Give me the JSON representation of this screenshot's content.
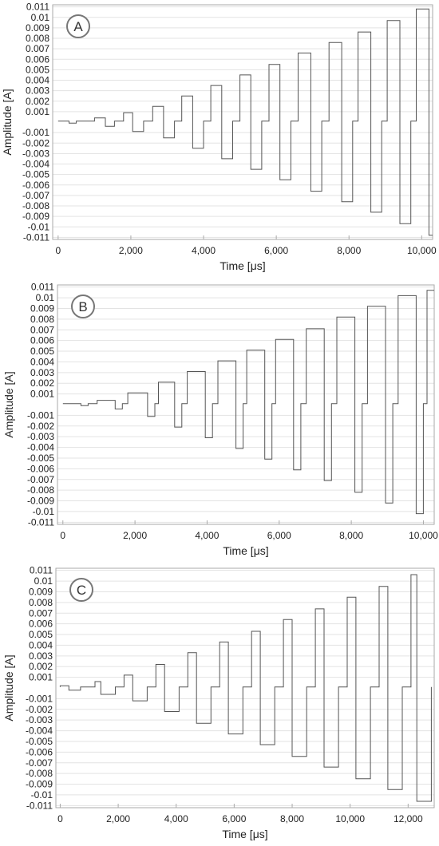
{
  "chart_data": [
    {
      "type": "line",
      "badge": "A",
      "xlabel": "Time [μs]",
      "ylabel": "Amplitude [A]",
      "xlim": [
        -150,
        10300
      ],
      "ylim": [
        -0.0112,
        0.0112
      ],
      "grid": true,
      "x_ticks": [
        0,
        2000,
        4000,
        6000,
        8000,
        10000
      ],
      "x_tick_labels": [
        "0",
        "2,000",
        "4,000",
        "6,000",
        "8,000",
        "10,000"
      ],
      "y_tick_labels": [
        "0.011",
        "0.01",
        "0.009",
        "0.008",
        "0.007",
        "0.006",
        "0.005",
        "0.004",
        "0.003",
        "0.002",
        "0.001",
        "-0.001",
        "-0.002",
        "-0.003",
        "-0.004",
        "-0.005",
        "-0.006",
        "-0.007",
        "-0.008",
        "-0.009",
        "-0.01",
        "-0.011"
      ],
      "pulses": [
        {
          "start": 0,
          "pos_end": 300,
          "neg_end": 500,
          "rest_end": 1000
        },
        {
          "start": 1000,
          "pos_end": 1300,
          "neg_end": 1550,
          "rest_end": 1800
        },
        {
          "start": 1800,
          "pos_end": 2050,
          "neg_end": 2350,
          "rest_end": 2600
        },
        {
          "start": 2600,
          "pos_end": 2900,
          "neg_end": 3200,
          "rest_end": 3400
        },
        {
          "start": 3400,
          "pos_end": 3700,
          "neg_end": 4000,
          "rest_end": 4200
        },
        {
          "start": 4200,
          "pos_end": 4500,
          "neg_end": 4800,
          "rest_end": 5000
        },
        {
          "start": 5000,
          "pos_end": 5300,
          "neg_end": 5600,
          "rest_end": 5800
        },
        {
          "start": 5800,
          "pos_end": 6100,
          "neg_end": 6400,
          "rest_end": 6600
        },
        {
          "start": 6600,
          "pos_end": 6950,
          "neg_end": 7250,
          "rest_end": 7450
        },
        {
          "start": 7450,
          "pos_end": 7800,
          "neg_end": 8100,
          "rest_end": 8250
        },
        {
          "start": 8250,
          "pos_end": 8600,
          "neg_end": 8900,
          "rest_end": 9050
        },
        {
          "start": 9050,
          "pos_end": 9400,
          "neg_end": 9700,
          "rest_end": 9850
        },
        {
          "start": 9850,
          "pos_end": 10200,
          "neg_end": 10500,
          "rest_end": 10500
        }
      ],
      "amplitudes": [
        0.0001,
        0.0004,
        0.0009,
        0.0015,
        0.0025,
        0.0035,
        0.0045,
        0.0055,
        0.0066,
        0.0076,
        0.0086,
        0.0097,
        0.0108
      ]
    },
    {
      "type": "line",
      "badge": "B",
      "xlabel": "Time [μs]",
      "ylabel": "Amplitude [A]",
      "xlim": [
        -150,
        10300
      ],
      "ylim": [
        -0.0112,
        0.0112
      ],
      "grid": true,
      "x_ticks": [
        0,
        2000,
        4000,
        6000,
        8000,
        10000
      ],
      "x_tick_labels": [
        "0",
        "2,000",
        "4,000",
        "6,000",
        "8,000",
        "10,000"
      ],
      "y_tick_labels": [
        "0.011",
        "0.01",
        "0.009",
        "0.008",
        "0.007",
        "0.006",
        "0.005",
        "0.004",
        "0.003",
        "0.002",
        "0.001",
        "-0.001",
        "-0.002",
        "-0.003",
        "-0.004",
        "-0.005",
        "-0.006",
        "-0.007",
        "-0.008",
        "-0.009",
        "-0.01",
        "-0.011"
      ],
      "pulses": [
        {
          "start": 0,
          "pos_end": 500,
          "neg_end": 700,
          "rest_end": 950
        },
        {
          "start": 950,
          "pos_end": 1450,
          "neg_end": 1650,
          "rest_end": 1800
        },
        {
          "start": 1800,
          "pos_end": 2350,
          "neg_end": 2550,
          "rest_end": 2650
        },
        {
          "start": 2650,
          "pos_end": 3100,
          "neg_end": 3300,
          "rest_end": 3450
        },
        {
          "start": 3450,
          "pos_end": 3950,
          "neg_end": 4150,
          "rest_end": 4300
        },
        {
          "start": 4300,
          "pos_end": 4800,
          "neg_end": 5000,
          "rest_end": 5100
        },
        {
          "start": 5100,
          "pos_end": 5600,
          "neg_end": 5800,
          "rest_end": 5900
        },
        {
          "start": 5900,
          "pos_end": 6400,
          "neg_end": 6600,
          "rest_end": 6750
        },
        {
          "start": 6750,
          "pos_end": 7250,
          "neg_end": 7450,
          "rest_end": 7600
        },
        {
          "start": 7600,
          "pos_end": 8100,
          "neg_end": 8300,
          "rest_end": 8450
        },
        {
          "start": 8450,
          "pos_end": 8950,
          "neg_end": 9150,
          "rest_end": 9300
        },
        {
          "start": 9300,
          "pos_end": 9800,
          "neg_end": 10000,
          "rest_end": 10100
        },
        {
          "start": 10100,
          "pos_end": 10600,
          "neg_end": 10800,
          "rest_end": 10800
        }
      ],
      "amplitudes": [
        0.0001,
        0.0004,
        0.0011,
        0.0021,
        0.0031,
        0.0041,
        0.0051,
        0.0061,
        0.0071,
        0.0082,
        0.0092,
        0.0102,
        0.0107
      ]
    },
    {
      "type": "line",
      "badge": "C",
      "xlabel": "Time [μs]",
      "ylabel": "Amplitude [A]",
      "xlim": [
        -150,
        12900
      ],
      "ylim": [
        -0.0112,
        0.0112
      ],
      "grid": true,
      "x_ticks": [
        0,
        2000,
        4000,
        6000,
        8000,
        10000,
        12000
      ],
      "x_tick_labels": [
        "0",
        "2,000",
        "4,000",
        "6,000",
        "8,000",
        "10,000",
        "12,000"
      ],
      "y_tick_labels": [
        "0.011",
        "0.01",
        "0.009",
        "0.008",
        "0.007",
        "0.006",
        "0.005",
        "0.004",
        "0.003",
        "0.002",
        "0.001",
        "-0.001",
        "-0.002",
        "-0.003",
        "-0.004",
        "-0.005",
        "-0.006",
        "-0.007",
        "-0.008",
        "-0.009",
        "-0.01",
        "-0.011"
      ],
      "pulses": [
        {
          "start": 0,
          "pos_end": 300,
          "neg_end": 700,
          "rest_end": 1200
        },
        {
          "start": 1200,
          "pos_end": 1400,
          "neg_end": 1900,
          "rest_end": 2200
        },
        {
          "start": 2200,
          "pos_end": 2500,
          "neg_end": 3000,
          "rest_end": 3300
        },
        {
          "start": 3300,
          "pos_end": 3600,
          "neg_end": 4100,
          "rest_end": 4400
        },
        {
          "start": 4400,
          "pos_end": 4700,
          "neg_end": 5200,
          "rest_end": 5500
        },
        {
          "start": 5500,
          "pos_end": 5800,
          "neg_end": 6300,
          "rest_end": 6600
        },
        {
          "start": 6600,
          "pos_end": 6900,
          "neg_end": 7400,
          "rest_end": 7700
        },
        {
          "start": 7700,
          "pos_end": 8000,
          "neg_end": 8500,
          "rest_end": 8800
        },
        {
          "start": 8800,
          "pos_end": 9100,
          "neg_end": 9600,
          "rest_end": 9900
        },
        {
          "start": 9900,
          "pos_end": 10200,
          "neg_end": 10700,
          "rest_end": 11000
        },
        {
          "start": 11000,
          "pos_end": 11300,
          "neg_end": 11800,
          "rest_end": 12100
        },
        {
          "start": 12100,
          "pos_end": 12300,
          "neg_end": 12800,
          "rest_end": 12800
        }
      ],
      "amplitudes": [
        0.0002,
        0.0006,
        0.0012,
        0.0022,
        0.0033,
        0.0043,
        0.0053,
        0.0064,
        0.0074,
        0.0085,
        0.0095,
        0.0106
      ]
    }
  ],
  "colors": {
    "line": "#555555",
    "grid": "#e3e3e3",
    "axis": "#aaaaaa",
    "badge_stroke": "#777777"
  }
}
